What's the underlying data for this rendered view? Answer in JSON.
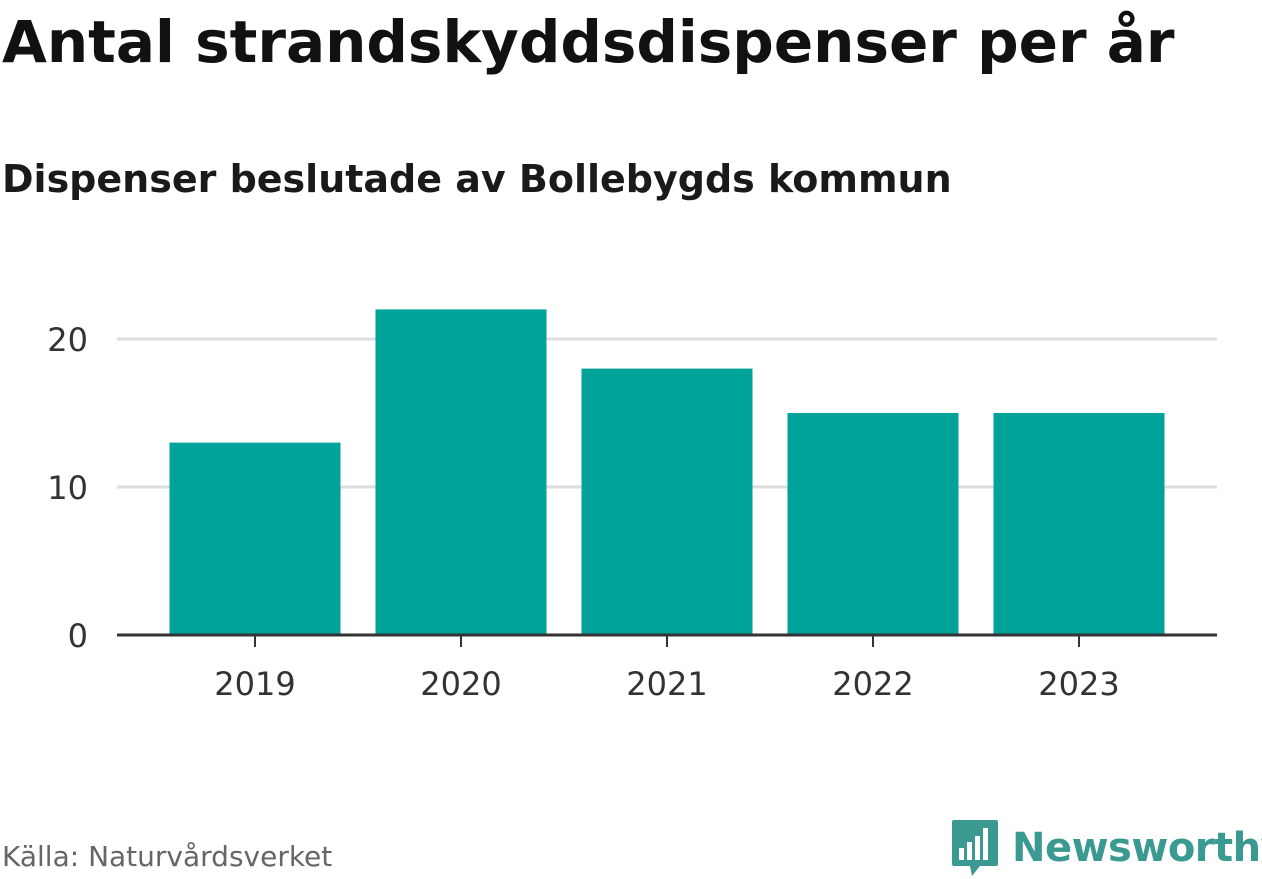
{
  "header": {
    "title": "Antal strandskyddsdispenser per år",
    "subtitle": "Dispenser beslutade av Bollebygds kommun"
  },
  "footer": {
    "source": "Källa: Naturvårdsverket",
    "brand": "Newsworthy"
  },
  "colors": {
    "bar": "#00a39a",
    "brand": "#3a9a91",
    "gridline": "#dddddd",
    "axis": "#333333"
  },
  "icons": {
    "brand_logo": "bar-chart-speech-bubble-icon"
  },
  "chart_data": {
    "type": "bar",
    "title": "Antal strandskyddsdispenser per år",
    "subtitle": "Dispenser beslutade av Bollebygds kommun",
    "categories": [
      "2019",
      "2020",
      "2021",
      "2022",
      "2023"
    ],
    "values": [
      13,
      22,
      18,
      15,
      15
    ],
    "xlabel": "",
    "ylabel": "",
    "ylim": [
      0,
      22
    ],
    "yticks": [
      0,
      10,
      20
    ],
    "grid": "horizontal",
    "legend": "none"
  }
}
